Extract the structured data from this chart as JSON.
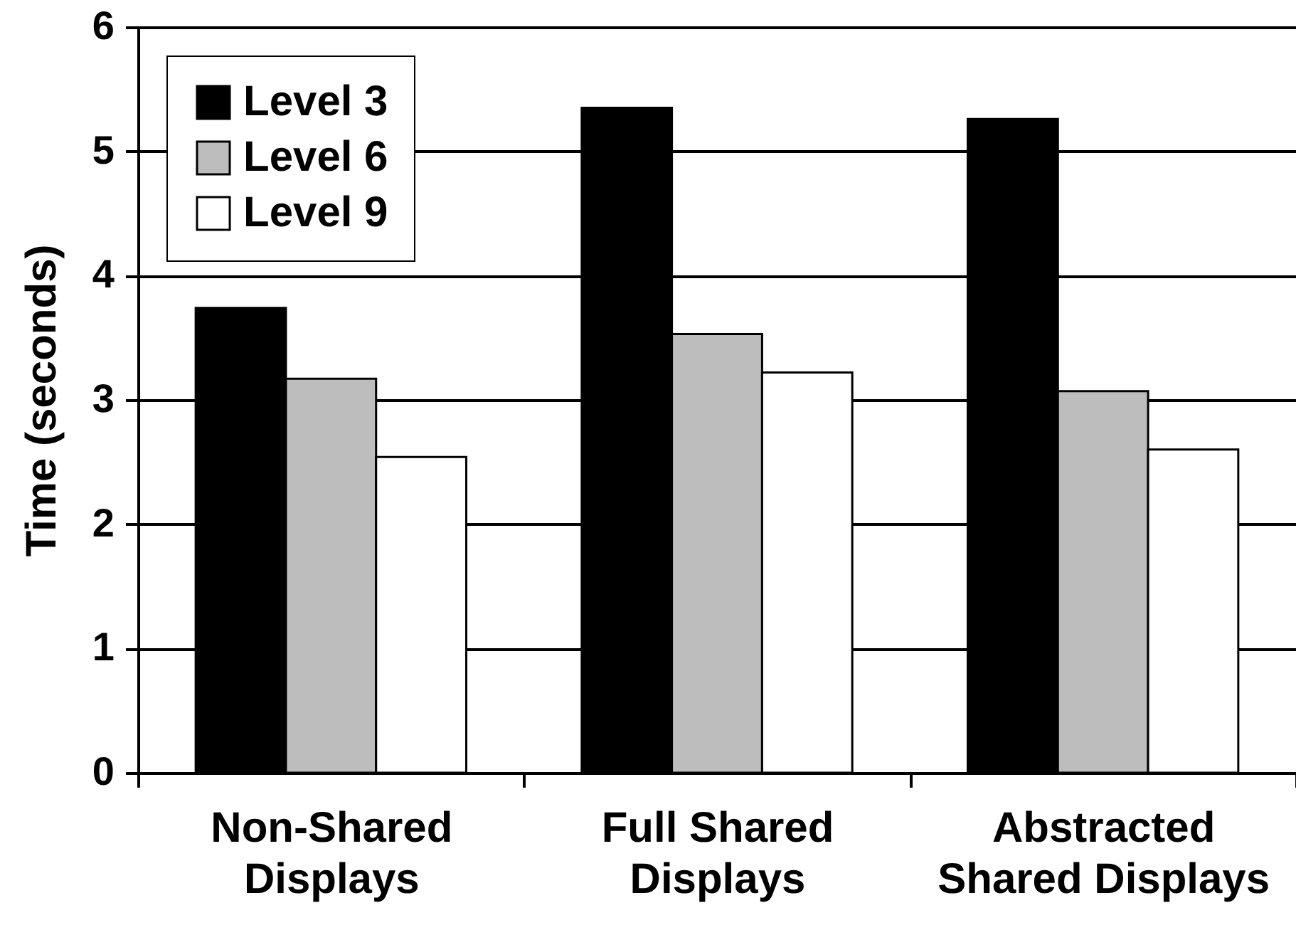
{
  "chart_data": {
    "type": "bar",
    "ylabel": "Time (seconds)",
    "categories": [
      "Non-Shared Displays",
      "Full Shared Displays",
      "Abstracted Shared Displays"
    ],
    "series": [
      {
        "name": "Level 3",
        "color": "#000000",
        "values": [
          3.74,
          5.35,
          5.26
        ]
      },
      {
        "name": "Level 6",
        "color": "#bdbdbd",
        "values": [
          3.17,
          3.53,
          3.07
        ]
      },
      {
        "name": "Level 9",
        "color": "#ffffff",
        "values": [
          2.54,
          3.22,
          2.6
        ]
      }
    ],
    "ylim": [
      0,
      6
    ],
    "yticks": [
      0,
      1,
      2,
      3,
      4,
      5,
      6
    ],
    "grid": "y",
    "legend": "top left"
  }
}
